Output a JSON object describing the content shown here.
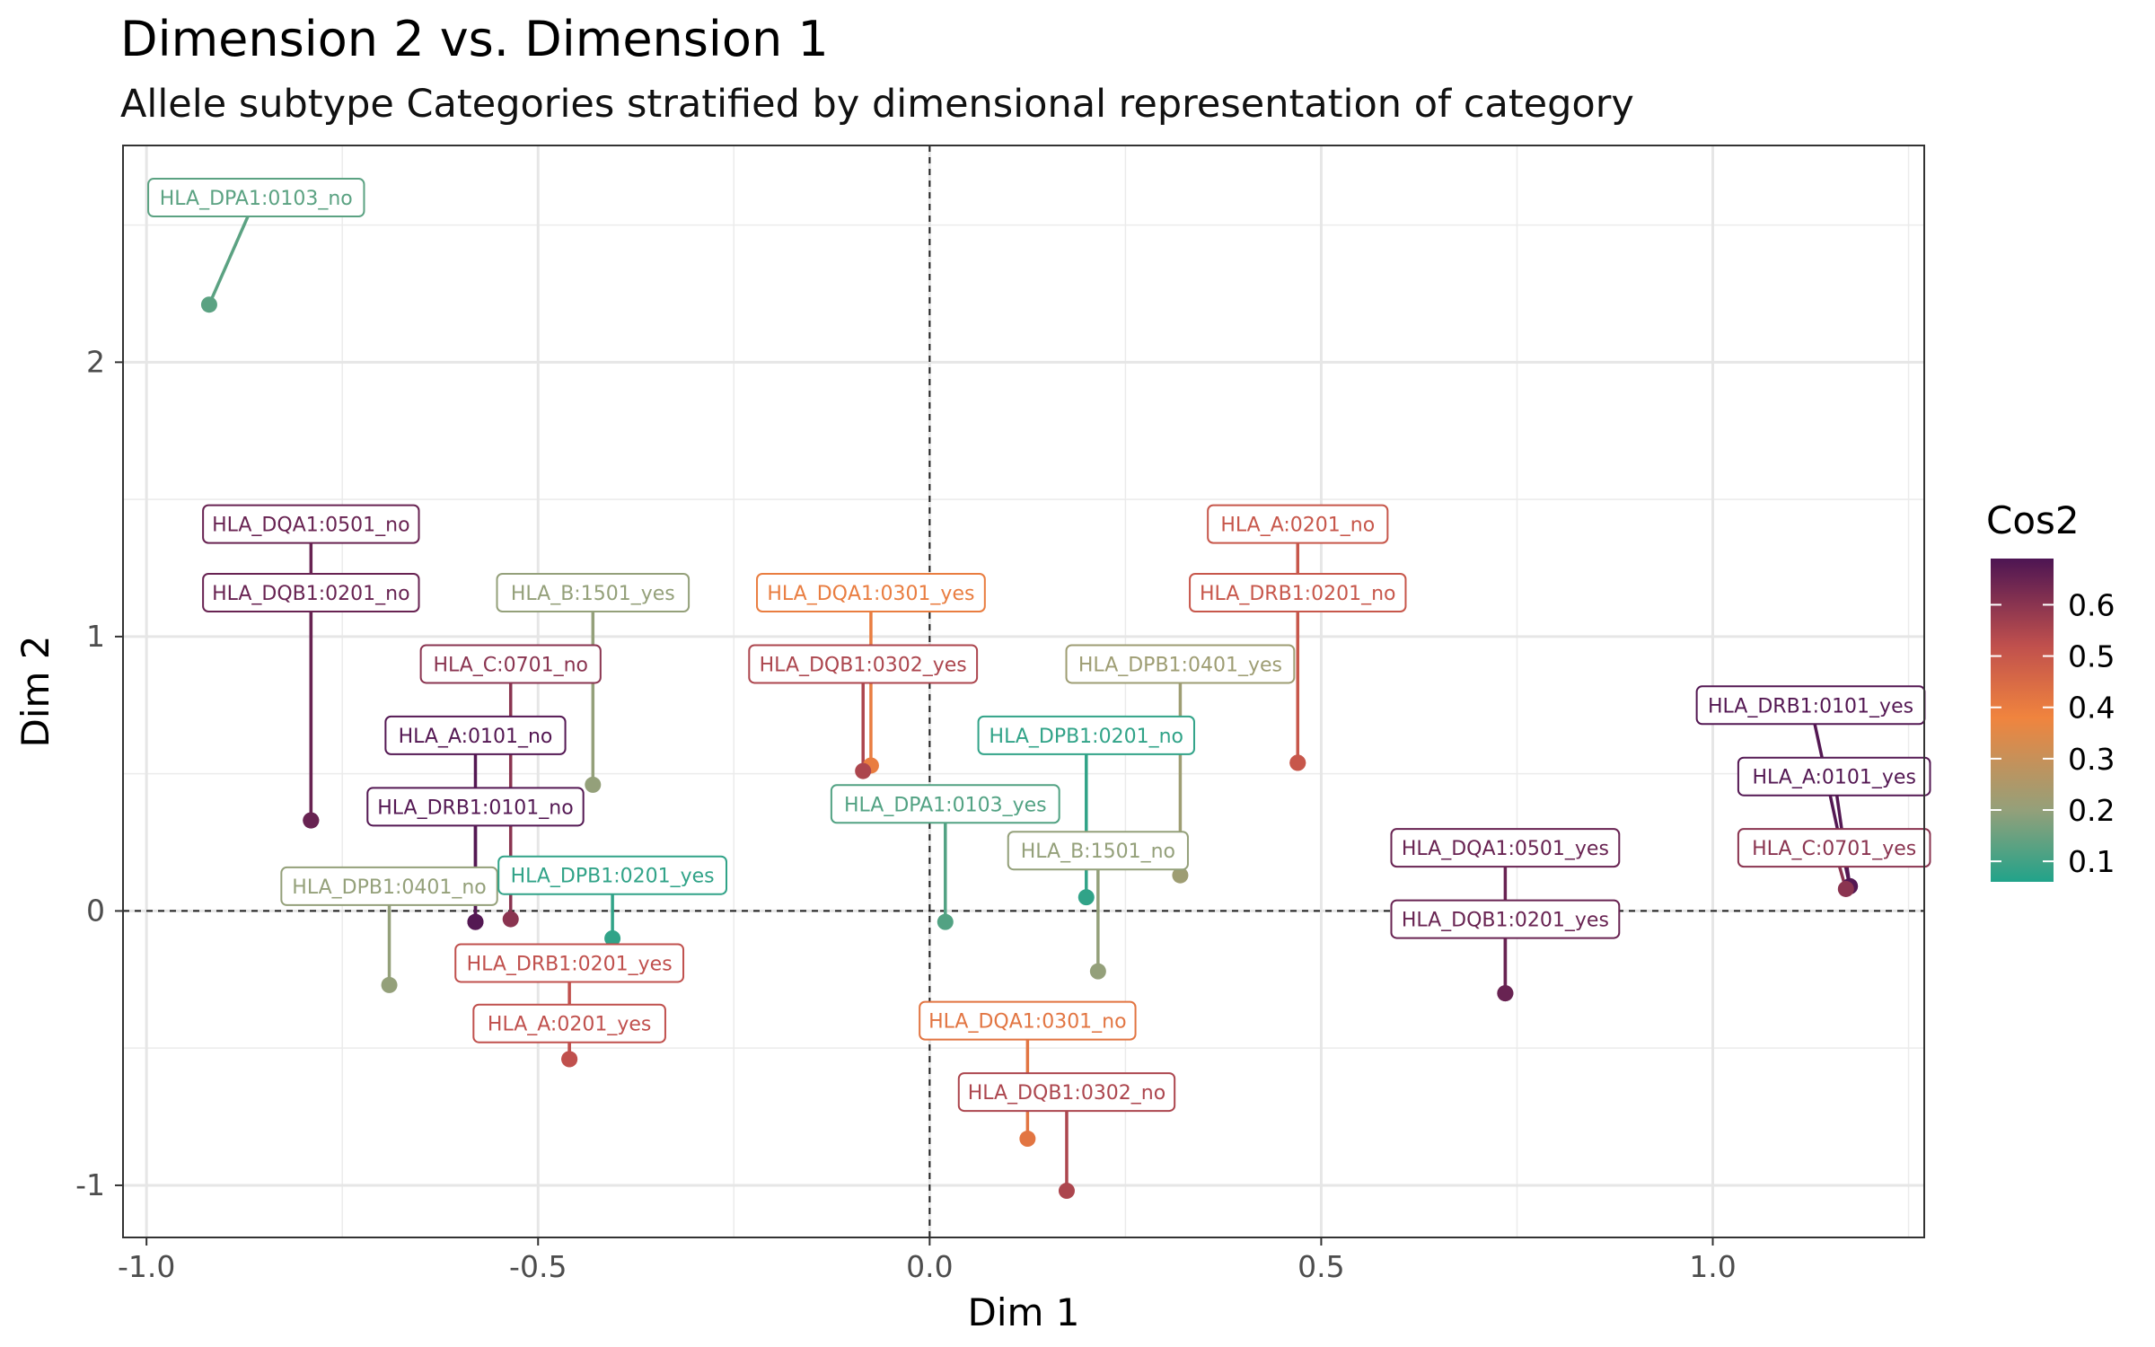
{
  "title": "Dimension 2 vs. Dimension 1",
  "subtitle": "Allele subtype Categories stratified by dimensional representation of category",
  "chart_data": {
    "type": "scatter",
    "title": "Dimension 2 vs. Dimension 1",
    "subtitle": "Allele subtype Categories stratified by dimensional representation of category",
    "xlabel": "Dim 1",
    "ylabel": "Dim 2",
    "xlim": [
      -1.03,
      1.27
    ],
    "ylim": [
      -1.19,
      2.79
    ],
    "xticks": [
      -1.0,
      -0.5,
      0.0,
      0.5,
      1.0
    ],
    "xtick_labels": [
      "-1.0",
      "-0.5",
      "0.0",
      "0.5",
      "1.0"
    ],
    "yticks": [
      -1,
      0,
      1,
      2
    ],
    "ytick_labels": [
      "-1",
      "0",
      "1",
      "2"
    ],
    "grid": true,
    "reference_lines": {
      "x": 0,
      "y": 0,
      "style": "dashed"
    },
    "color_scale": {
      "title": "Cos2",
      "range": [
        0.06,
        0.69
      ],
      "ticks": [
        0.1,
        0.2,
        0.3,
        0.4,
        0.5,
        0.6
      ],
      "tick_labels": [
        "0.1",
        "0.2",
        "0.3",
        "0.4",
        "0.5",
        "0.6"
      ],
      "stops": [
        {
          "v": 0.06,
          "color": "#21a38a"
        },
        {
          "v": 0.2,
          "color": "#94a07a"
        },
        {
          "v": 0.38,
          "color": "#f0843e"
        },
        {
          "v": 0.52,
          "color": "#c0504d"
        },
        {
          "v": 0.69,
          "color": "#4d1553"
        }
      ]
    },
    "legend_position": "right",
    "points": [
      {
        "label": "HLA_DPA1:0103_no",
        "x": -0.92,
        "y": 2.21,
        "cos2": 0.13,
        "lx": -0.86,
        "ly": 2.6
      },
      {
        "label": "HLA_DQA1:0501_no",
        "x": -0.79,
        "y": 0.33,
        "cos2": 0.65,
        "lx": -0.79,
        "ly": 1.41
      },
      {
        "label": "HLA_DQB1:0201_no",
        "x": -0.79,
        "y": 0.33,
        "cos2": 0.65,
        "lx": -0.79,
        "ly": 1.16
      },
      {
        "label": "HLA_B:1501_yes",
        "x": -0.43,
        "y": 0.46,
        "cos2": 0.2,
        "lx": -0.43,
        "ly": 1.16
      },
      {
        "label": "HLA_C:0701_no",
        "x": -0.535,
        "y": -0.03,
        "cos2": 0.6,
        "lx": -0.535,
        "ly": 0.9
      },
      {
        "label": "HLA_A:0101_no",
        "x": -0.58,
        "y": -0.04,
        "cos2": 0.68,
        "lx": -0.58,
        "ly": 0.64
      },
      {
        "label": "HLA_DRB1:0101_no",
        "x": -0.58,
        "y": -0.04,
        "cos2": 0.68,
        "lx": -0.58,
        "ly": 0.38
      },
      {
        "label": "HLA_DPB1:0401_no",
        "x": -0.69,
        "y": -0.27,
        "cos2": 0.2,
        "lx": -0.69,
        "ly": 0.09
      },
      {
        "label": "HLA_DPB1:0201_yes",
        "x": -0.405,
        "y": -0.1,
        "cos2": 0.08,
        "lx": -0.405,
        "ly": 0.13
      },
      {
        "label": "HLA_DRB1:0201_yes",
        "x": -0.46,
        "y": -0.54,
        "cos2": 0.52,
        "lx": -0.46,
        "ly": -0.19
      },
      {
        "label": "HLA_A:0201_yes",
        "x": -0.46,
        "y": -0.54,
        "cos2": 0.52,
        "lx": -0.46,
        "ly": -0.41
      },
      {
        "label": "HLA_DQA1:0301_yes",
        "x": -0.075,
        "y": 0.53,
        "cos2": 0.4,
        "lx": -0.075,
        "ly": 1.16
      },
      {
        "label": "HLA_DQB1:0302_yes",
        "x": -0.085,
        "y": 0.51,
        "cos2": 0.55,
        "lx": -0.085,
        "ly": 0.9
      },
      {
        "label": "HLA_DPA1:0103_yes",
        "x": 0.02,
        "y": -0.04,
        "cos2": 0.12,
        "lx": 0.02,
        "ly": 0.39
      },
      {
        "label": "HLA_DPB1:0201_no",
        "x": 0.2,
        "y": 0.05,
        "cos2": 0.08,
        "lx": 0.2,
        "ly": 0.64
      },
      {
        "label": "HLA_B:1501_no",
        "x": 0.215,
        "y": -0.22,
        "cos2": 0.2,
        "lx": 0.215,
        "ly": 0.22
      },
      {
        "label": "HLA_DPB1:0401_yes",
        "x": 0.32,
        "y": 0.13,
        "cos2": 0.22,
        "lx": 0.32,
        "ly": 0.9
      },
      {
        "label": "HLA_DQA1:0301_no",
        "x": 0.125,
        "y": -0.83,
        "cos2": 0.42,
        "lx": 0.125,
        "ly": -0.4
      },
      {
        "label": "HLA_DQB1:0302_no",
        "x": 0.175,
        "y": -1.02,
        "cos2": 0.55,
        "lx": 0.175,
        "ly": -0.66
      },
      {
        "label": "HLA_A:0201_no",
        "x": 0.47,
        "y": 0.54,
        "cos2": 0.5,
        "lx": 0.47,
        "ly": 1.41
      },
      {
        "label": "HLA_DRB1:0201_no",
        "x": 0.47,
        "y": 0.54,
        "cos2": 0.5,
        "lx": 0.47,
        "ly": 1.16
      },
      {
        "label": "HLA_DQA1:0501_yes",
        "x": 0.735,
        "y": -0.3,
        "cos2": 0.65,
        "lx": 0.735,
        "ly": 0.23
      },
      {
        "label": "HLA_DQB1:0201_yes",
        "x": 0.735,
        "y": -0.3,
        "cos2": 0.65,
        "lx": 0.735,
        "ly": -0.03
      },
      {
        "label": "HLA_DRB1:0101_yes",
        "x": 1.175,
        "y": 0.09,
        "cos2": 0.68,
        "lx": 1.125,
        "ly": 0.75
      },
      {
        "label": "HLA_A:0101_yes",
        "x": 1.175,
        "y": 0.09,
        "cos2": 0.68,
        "lx": 1.155,
        "ly": 0.49
      },
      {
        "label": "HLA_C:0701_yes",
        "x": 1.17,
        "y": 0.08,
        "cos2": 0.6,
        "lx": 1.155,
        "ly": 0.23
      }
    ]
  }
}
